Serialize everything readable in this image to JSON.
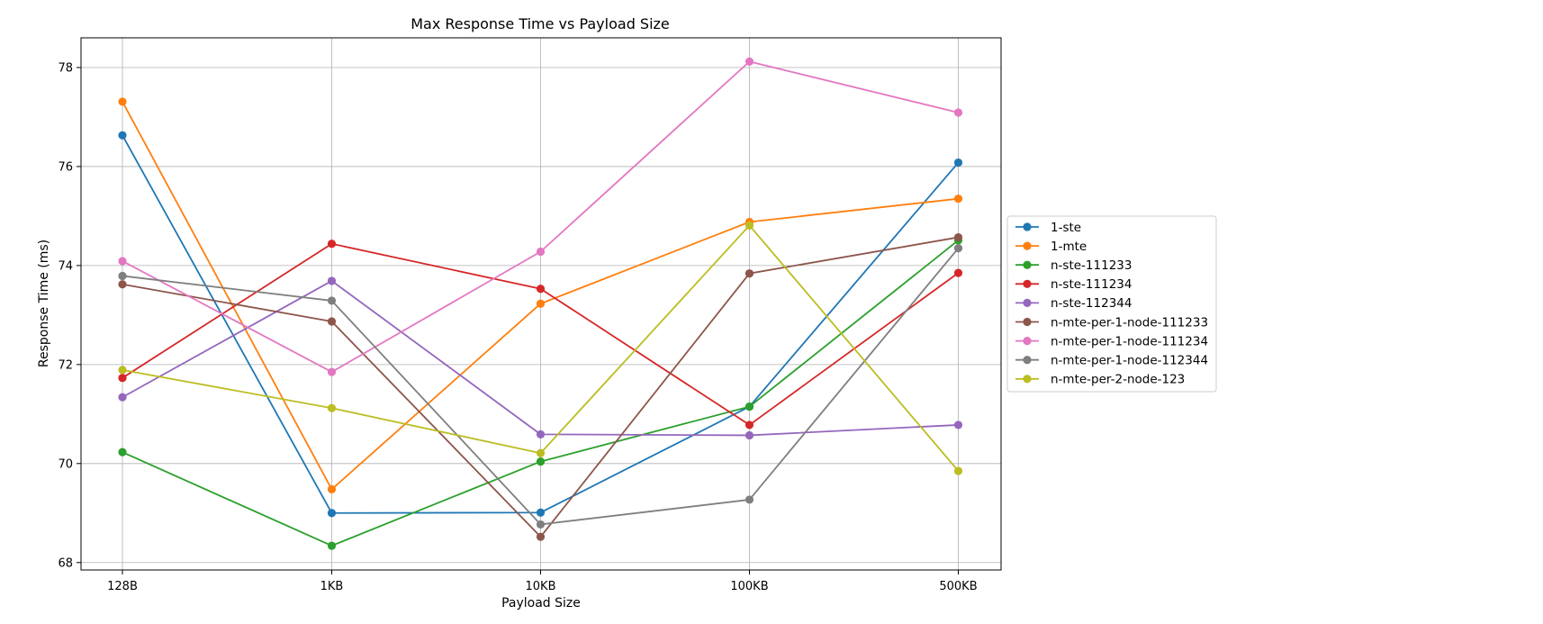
{
  "chart_data": {
    "type": "line",
    "title": "Max Response Time vs Payload Size",
    "xlabel": "Payload Size",
    "ylabel": "Response Time (ms)",
    "categories": [
      "128B",
      "1KB",
      "10KB",
      "100KB",
      "500KB"
    ],
    "ylim": [
      67.85,
      78.6
    ],
    "yticks": [
      68,
      70,
      72,
      74,
      76,
      78
    ],
    "grid": true,
    "legend_position": "center-right-outside",
    "series": [
      {
        "name": "1-ste",
        "color": "#1f77b4",
        "values": [
          76.63,
          69.0,
          69.01,
          71.15,
          76.08
        ]
      },
      {
        "name": "1-mte",
        "color": "#ff7f0e",
        "values": [
          77.31,
          69.48,
          73.23,
          74.88,
          75.35
        ]
      },
      {
        "name": "n-ste-111233",
        "color": "#2ca02c",
        "values": [
          70.23,
          68.34,
          70.04,
          71.15,
          74.51
        ]
      },
      {
        "name": "n-ste-111234",
        "color": "#d62728",
        "values": [
          71.73,
          74.44,
          73.53,
          70.78,
          73.85
        ]
      },
      {
        "name": "n-ste-112344",
        "color": "#9467bd",
        "values": [
          71.34,
          73.69,
          70.59,
          70.57,
          70.78
        ]
      },
      {
        "name": "n-mte-per-1-node-111233",
        "color": "#8c564b",
        "values": [
          73.62,
          72.87,
          68.52,
          73.84,
          74.57
        ]
      },
      {
        "name": "n-mte-per-1-node-111234",
        "color": "#e377c2",
        "values": [
          74.09,
          71.85,
          74.28,
          78.12,
          77.09
        ]
      },
      {
        "name": "n-mte-per-1-node-112344",
        "color": "#7f7f7f",
        "values": [
          73.79,
          73.29,
          68.77,
          69.27,
          74.35
        ]
      },
      {
        "name": "n-mte-per-2-node-123",
        "color": "#bcbd22",
        "values": [
          71.89,
          71.12,
          70.21,
          74.81,
          69.85
        ]
      }
    ]
  }
}
